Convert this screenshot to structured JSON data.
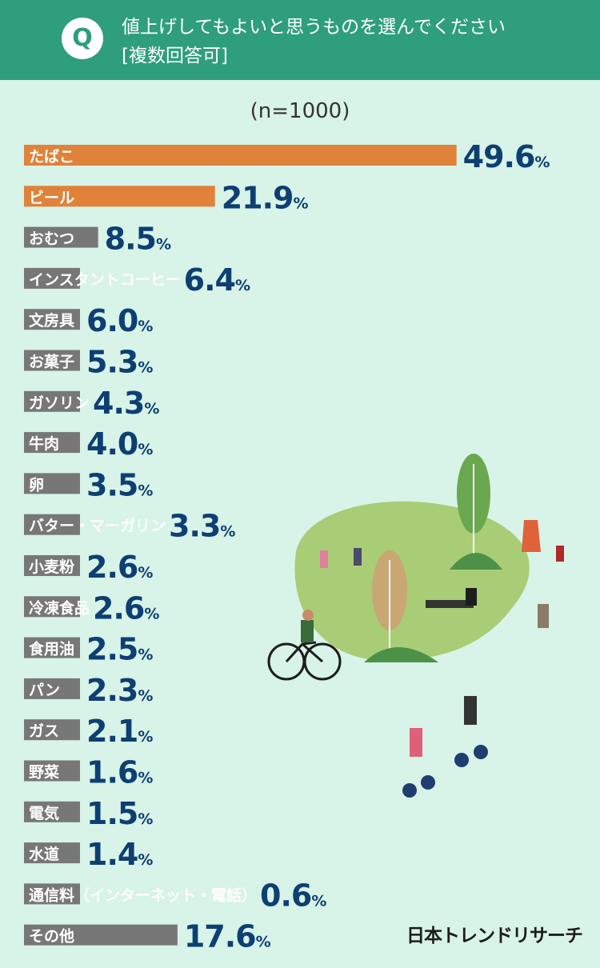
{
  "header": {
    "badge": "Q",
    "question_line1": "値上げしてもよいと思うものを選んでください",
    "question_line2": "[複数回答可]"
  },
  "sample_size": "(n=1000)",
  "chart_data": {
    "type": "bar",
    "orientation": "horizontal",
    "unit": "%",
    "categories": [
      "たばこ",
      "ビール",
      "おむつ",
      "インスタントコーヒー",
      "文房具",
      "お菓子",
      "ガソリン",
      "牛肉",
      "卵",
      "バター・マーガリン",
      "小麦粉",
      "冷凍食品",
      "食用油",
      "パン",
      "ガス",
      "野菜",
      "電気",
      "水道",
      "通信料（インターネット・電話）",
      "その他"
    ],
    "values": [
      49.6,
      21.9,
      8.5,
      6.4,
      6.0,
      5.3,
      4.3,
      4.0,
      3.5,
      3.3,
      2.6,
      2.6,
      2.5,
      2.3,
      2.1,
      1.6,
      1.5,
      1.4,
      0.6,
      17.6
    ],
    "value_labels": [
      "49.6",
      "21.9",
      "8.5",
      "6.4",
      "6.0",
      "5.3",
      "4.3",
      "4.0",
      "3.5",
      "3.3",
      "2.6",
      "2.6",
      "2.5",
      "2.3",
      "2.1",
      "1.6",
      "1.5",
      "1.4",
      "0.6",
      "17.6"
    ],
    "highlight_top": 2
  },
  "colors": {
    "header": "#2e9e7c",
    "background": "#d8f3e7",
    "highlight_bar": "#e0823a",
    "bar": "#777777",
    "value_text": "#0d3f73"
  },
  "logo": "日本トレンドリサーチ"
}
